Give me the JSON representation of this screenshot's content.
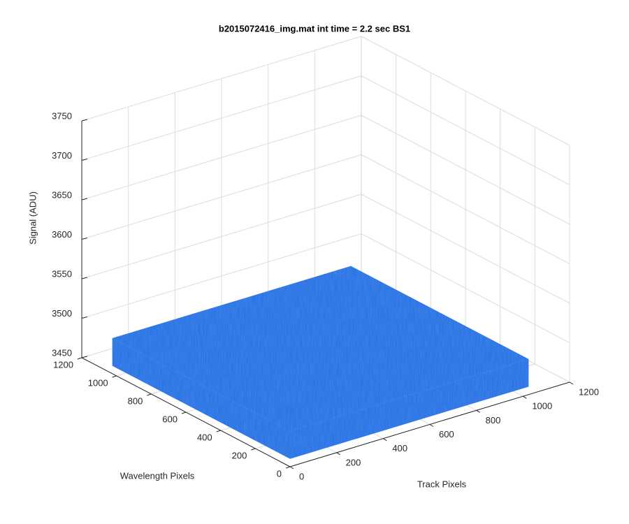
{
  "chart_data": {
    "type": "surface",
    "title": "b2015072416_img.mat int time = 2.2 sec   BS1",
    "xlabel": "Track Pixels",
    "ylabel": "Wavelength Pixels",
    "zlabel": "Signal (ADU)",
    "xlim": [
      0,
      1200
    ],
    "xticks": [
      0,
      200,
      400,
      600,
      800,
      1000,
      1200
    ],
    "ylim": [
      0,
      1200
    ],
    "yticks": [
      0,
      200,
      400,
      600,
      800,
      1000,
      1200
    ],
    "zlim": [
      3450,
      3750
    ],
    "zticks": [
      3450,
      3500,
      3550,
      3600,
      3650,
      3700,
      3750
    ],
    "grid": true,
    "surface": {
      "x": [
        0,
        1024
      ],
      "y": [
        0,
        1024
      ],
      "z": [
        3460,
        3495
      ],
      "color": "#1f6fe6"
    }
  }
}
